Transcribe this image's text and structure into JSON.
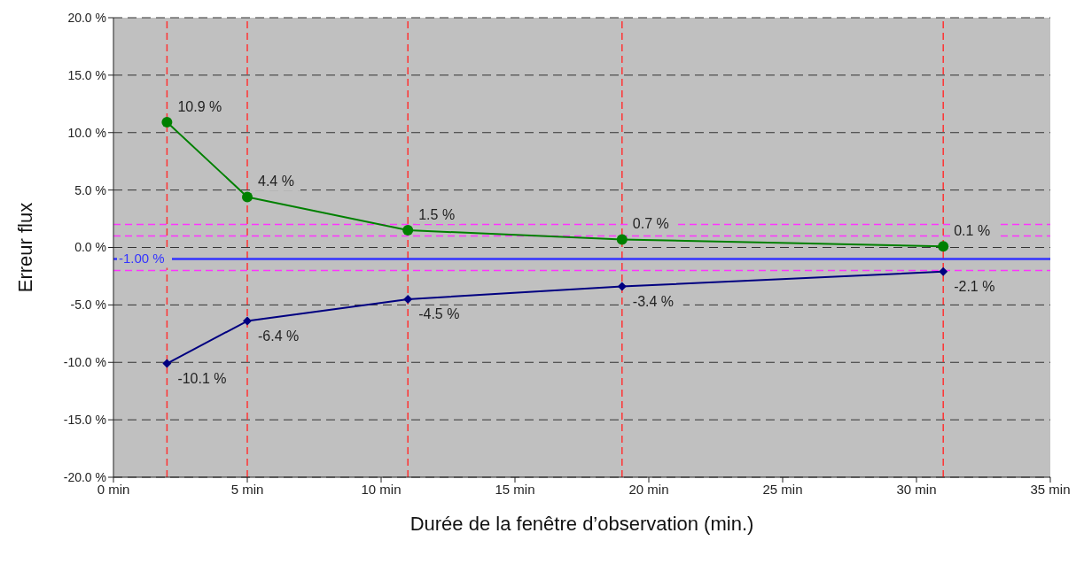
{
  "chart_data": {
    "type": "line",
    "xlabel": "Durée de la fenêtre d’observation (min.)",
    "ylabel": "Erreur flux",
    "x": [
      2,
      5,
      11,
      19,
      31
    ],
    "series": [
      {
        "color": "#008000",
        "marker": "circle",
        "values": [
          10.9,
          4.4,
          1.5,
          0.7,
          0.1
        ],
        "value_labels": [
          "10.9 %",
          "4.4 %",
          "1.5 %",
          "0.7 %",
          "0.1 %"
        ]
      },
      {
        "color": "#000080",
        "marker": "diamond",
        "values": [
          -10.1,
          -6.4,
          -4.5,
          -3.4,
          -2.1
        ],
        "value_labels": [
          "-10.1 %",
          "-6.4 %",
          "-4.5 %",
          "-3.4 %",
          "-2.1 %"
        ]
      }
    ],
    "xlim": [
      0,
      35
    ],
    "xticks": [
      {
        "value": 0,
        "label": "0 min"
      },
      {
        "value": 5,
        "label": "5 min"
      },
      {
        "value": 10,
        "label": "10 min"
      },
      {
        "value": 15,
        "label": "15 min"
      },
      {
        "value": 20,
        "label": "20 min"
      },
      {
        "value": 25,
        "label": "25 min"
      },
      {
        "value": 30,
        "label": "30 min"
      },
      {
        "value": 35,
        "label": "35 min"
      }
    ],
    "ylim": [
      -20,
      20
    ],
    "yticks": [
      {
        "value": -20,
        "label": "-20.0 %"
      },
      {
        "value": -15,
        "label": "-15.0 %"
      },
      {
        "value": -10,
        "label": "-10.0 %"
      },
      {
        "value": -5,
        "label": "-5.0 %"
      },
      {
        "value": 0,
        "label": "0.0 %"
      },
      {
        "value": 5,
        "label": "5.0 %"
      },
      {
        "value": 10,
        "label": "10.0 %"
      },
      {
        "value": 15,
        "label": "15.0 %"
      },
      {
        "value": 20,
        "label": "20.0 %"
      }
    ],
    "grid": "y",
    "legend": false,
    "line_style": "solid",
    "ref_lines": [
      {
        "axis": "x",
        "value": 2,
        "color": "#ff3333",
        "line_style": "dashed"
      },
      {
        "axis": "x",
        "value": 5,
        "color": "#ff3333",
        "line_style": "dashed"
      },
      {
        "axis": "x",
        "value": 11,
        "color": "#ff3333",
        "line_style": "dashed"
      },
      {
        "axis": "x",
        "value": 19,
        "color": "#ff3333",
        "line_style": "dashed"
      },
      {
        "axis": "x",
        "value": 31,
        "color": "#ff3333",
        "line_style": "dashed"
      },
      {
        "axis": "y",
        "value": 2,
        "color": "#ff33ff",
        "line_style": "dashed"
      },
      {
        "axis": "y",
        "value": 1,
        "color": "#ff33ff",
        "line_style": "dashed"
      },
      {
        "axis": "y",
        "value": -2,
        "color": "#ff33ff",
        "line_style": "dashed"
      },
      {
        "axis": "y",
        "value": -1,
        "color": "#3333ff",
        "line_style": "solid",
        "label": "-1.00 %"
      }
    ]
  }
}
